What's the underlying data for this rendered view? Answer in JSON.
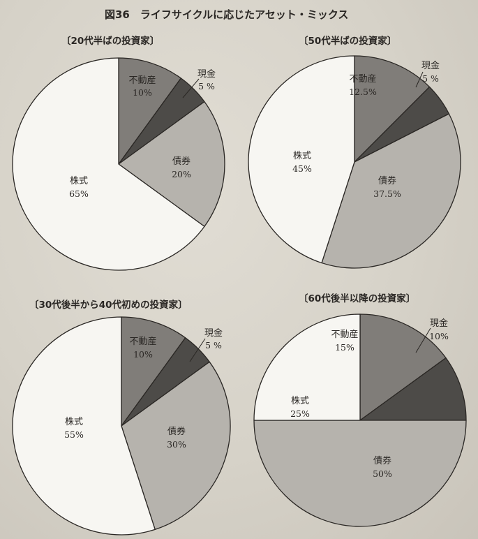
{
  "figure_title": "図36　ライフサイクルに応じたアセット・ミックス",
  "colors": {
    "不動産": "#807d79",
    "現金": "#4d4b48",
    "債券": "#b6b3ad",
    "株式": "#f7f6f2",
    "stroke": "#2a2724"
  },
  "chart_data": [
    {
      "type": "pie",
      "title": "〔20代半ばの投資家〕",
      "slices": [
        {
          "label": "不動産",
          "pct_text": "10%",
          "value": 10
        },
        {
          "label": "現金",
          "pct_text": "5 %",
          "value": 5
        },
        {
          "label": "債券",
          "pct_text": "20%",
          "value": 20
        },
        {
          "label": "株式",
          "pct_text": "65%",
          "value": 65
        }
      ]
    },
    {
      "type": "pie",
      "title": "〔50代半ばの投資家〕",
      "slices": [
        {
          "label": "不動産",
          "pct_text": "12.5%",
          "value": 12.5
        },
        {
          "label": "現金",
          "pct_text": "5 %",
          "value": 5
        },
        {
          "label": "債券",
          "pct_text": "37.5%",
          "value": 37.5
        },
        {
          "label": "株式",
          "pct_text": "45%",
          "value": 45
        }
      ]
    },
    {
      "type": "pie",
      "title": "〔30代後半から40代初めの投資家〕",
      "slices": [
        {
          "label": "不動産",
          "pct_text": "10%",
          "value": 10
        },
        {
          "label": "現金",
          "pct_text": "5 %",
          "value": 5
        },
        {
          "label": "債券",
          "pct_text": "30%",
          "value": 30
        },
        {
          "label": "株式",
          "pct_text": "55%",
          "value": 55
        }
      ]
    },
    {
      "type": "pie",
      "title": "〔60代後半以降の投資家〕",
      "slices": [
        {
          "label": "不動産",
          "pct_text": "15%",
          "value": 15
        },
        {
          "label": "現金",
          "pct_text": "10%",
          "value": 10
        },
        {
          "label": "債券",
          "pct_text": "50%",
          "value": 50
        },
        {
          "label": "株式",
          "pct_text": "25%",
          "value": 25
        }
      ]
    }
  ]
}
